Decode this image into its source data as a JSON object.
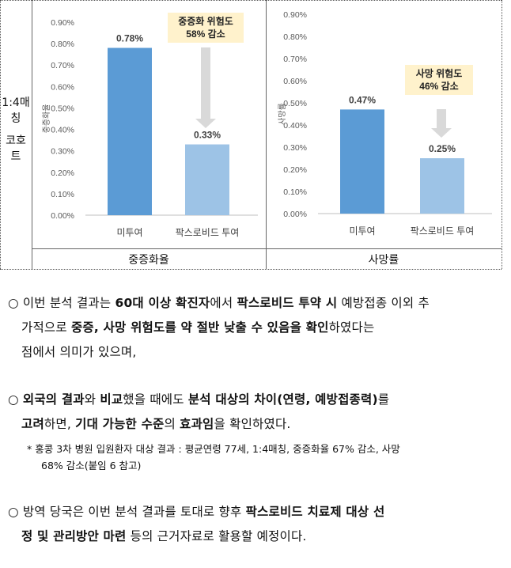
{
  "row_label": [
    "1:4매",
    "칭",
    "코호",
    "트"
  ],
  "columns": [
    "중증화율",
    "사망률"
  ],
  "chart_data": [
    {
      "type": "bar",
      "categories": [
        "미투여",
        "팍스로비드 투여"
      ],
      "values": [
        0.78,
        0.33
      ],
      "value_labels": [
        "0.78%",
        "0.33%"
      ],
      "ylabel": "중증화율",
      "ylim": [
        0,
        0.9
      ],
      "yticks": [
        "0.00%",
        "0.10%",
        "0.20%",
        "0.30%",
        "0.40%",
        "0.50%",
        "0.60%",
        "0.70%",
        "0.80%",
        "0.90%"
      ],
      "callout": [
        "중증화 위험도",
        "58% 감소"
      ],
      "colors": [
        "#5b9bd5",
        "#9dc3e6"
      ]
    },
    {
      "type": "bar",
      "categories": [
        "미투여",
        "팍스로비드 투여"
      ],
      "values": [
        0.47,
        0.25
      ],
      "value_labels": [
        "0.47%",
        "0.25%"
      ],
      "ylabel": "사망률",
      "ylim": [
        0,
        0.9
      ],
      "yticks": [
        "0.00%",
        "0.10%",
        "0.20%",
        "0.30%",
        "0.40%",
        "0.50%",
        "0.60%",
        "0.70%",
        "0.80%",
        "0.90%"
      ],
      "callout": [
        "사망 위험도",
        "46% 감소"
      ],
      "colors": [
        "#5b9bd5",
        "#9dc3e6"
      ]
    }
  ],
  "paragraphs": [
    {
      "lines": [
        [
          [
            "○ 이번 분석 결과는 ",
            false
          ],
          [
            "60대 이상 확진자",
            true
          ],
          [
            "에서 ",
            false
          ],
          [
            "팍스로비드 투약 시",
            true
          ],
          [
            " 예방접종 이외 추",
            false
          ]
        ],
        [
          [
            "가적으로 ",
            false
          ],
          [
            "중증, 사망 위험도를 약 절반 낮출 수 있음을 확인",
            true
          ],
          [
            "하였다는",
            false
          ]
        ],
        [
          [
            "점에서 의미가 있으며,",
            false
          ]
        ]
      ]
    },
    {
      "lines": [
        [
          [
            "○ ",
            false
          ],
          [
            "외국의 결과",
            true
          ],
          [
            "와 ",
            false
          ],
          [
            "비교",
            true
          ],
          [
            "했을 때에도 ",
            false
          ],
          [
            "분석 대상의 차이(연령, 예방접종력)",
            true
          ],
          [
            "를",
            false
          ]
        ],
        [
          [
            "고려",
            true
          ],
          [
            "하면, ",
            false
          ],
          [
            "기대 가능한 수준",
            true
          ],
          [
            "의 ",
            false
          ],
          [
            "효과임",
            true
          ],
          [
            "을 확인하였다.",
            false
          ]
        ]
      ]
    },
    {
      "lines": [
        [
          [
            "○ 방역 당국은 이번 분석 결과를 토대로 향후 ",
            false
          ],
          [
            "팍스로비드 치료제 대상 선",
            true
          ]
        ],
        [
          [
            "정 및 관리방안 마련",
            true
          ],
          [
            " 등의 근거자료로 활용할 예정이다.",
            false
          ]
        ]
      ]
    }
  ],
  "footnote": [
    "*  홍콩 3차 병원 입원환자 대상 결과 : 평균연령 77세, 1:4매칭, 중증화율 67% 감소, 사망",
    "68% 감소(붙임 6 참고)"
  ]
}
